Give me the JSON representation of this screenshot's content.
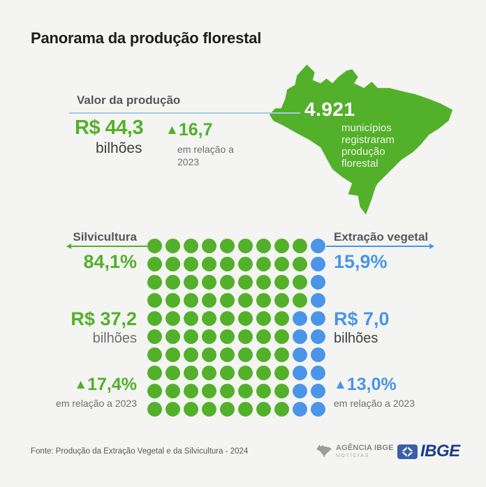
{
  "page": {
    "title": "Panorama da produção florestal"
  },
  "colors": {
    "bg": "#f4f5f2",
    "green": "#53b02a",
    "blue": "#4a95e8",
    "light_blue_line": "#a5cae8",
    "title": "#1d1d1b",
    "label_gray": "#54565a",
    "note_gray": "#6d6e71",
    "dark_text": "#3c3e41",
    "ibge_blue": "#1e3c8c",
    "ibge_square_blue": "#3a5fa8",
    "agencia_gray": "#9a9c9e"
  },
  "icons": {
    "triangle_up": "▲"
  },
  "production_value": {
    "label": "Valor da produção",
    "amount": "R$ 44,3",
    "unit": "bilhões",
    "delta_value": "16,7",
    "delta_note": "em relação a 2023"
  },
  "map": {
    "number": "4.921",
    "caption": "municípios registraram produção florestal"
  },
  "silvicultura": {
    "label": "Silvicultura",
    "share": "84,1%",
    "amount": "R$ 37,2",
    "unit": "bilhões",
    "delta_value": "17,4%",
    "delta_note": "em relação a 2023"
  },
  "extracao": {
    "label": "Extração vegetal",
    "share": "15,9%",
    "amount": "R$ 7,0",
    "unit": "bilhões",
    "delta_value": "13,0%",
    "delta_note": "em relação a 2023"
  },
  "footer": {
    "source": "Fonte: Produção da Extração Vegetal e da Silvicultura - 2024",
    "agencia_name": "AGÊNCIA IBGE",
    "agencia_sub": "NOTÍCIAS",
    "ibge_wordmark": "IBGE"
  },
  "chart_data": {
    "type": "pie",
    "title": "Panorama da produção florestal",
    "categories": [
      "Silvicultura",
      "Extração vegetal"
    ],
    "values": [
      84.1,
      15.9
    ],
    "value_labels": [
      "84,1%",
      "15,9%"
    ],
    "series_colors": [
      "#53b02a",
      "#4a95e8"
    ],
    "amounts_bilhoes_reais": [
      37.2,
      7.0
    ],
    "yoy_change_pct": [
      17.4,
      13.0
    ],
    "total_value_bilhoes_reais": 44.3,
    "total_yoy_change": 16.7,
    "municipios_com_producao": 4921,
    "legend_position": "sides",
    "waffle_grid": {
      "rows": 10,
      "cols": 10,
      "dot_total": 100,
      "silvicultura_dots": 84,
      "extracao_dots": 16,
      "blue_dots_per_row_right_aligned": [
        1,
        1,
        1,
        1,
        2,
        2,
        2,
        2,
        2,
        2
      ]
    }
  }
}
